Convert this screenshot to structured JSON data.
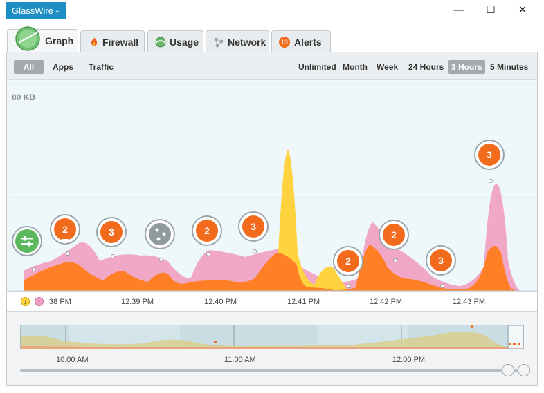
{
  "app": {
    "title": "GlassWire"
  },
  "window": {
    "minimize": "—",
    "maximize": "☐",
    "close": "✕"
  },
  "tabs": [
    {
      "label": "Graph",
      "icon": "graph-icon",
      "active": true
    },
    {
      "label": "Firewall",
      "icon": "flame-icon"
    },
    {
      "label": "Usage",
      "icon": "usage-icon"
    },
    {
      "label": "Network",
      "icon": "network-icon"
    },
    {
      "label": "Alerts",
      "icon": "alerts-icon",
      "badge": "13"
    }
  ],
  "filters": {
    "left": [
      "All",
      "Apps",
      "Traffic"
    ],
    "left_selected": "All",
    "right": [
      "Unlimited",
      "Month",
      "Week",
      "24 Hours",
      "3 Hours",
      "5 Minutes"
    ],
    "right_selected": "3 Hours"
  },
  "graph": {
    "y_max_label": "80 KB",
    "x_ticks": [
      ":38 PM",
      "12:39 PM",
      "12:40 PM",
      "12:41 PM",
      "12:42 PM",
      "12:43 PM"
    ],
    "markers": [
      {
        "kind": "settings",
        "label": ""
      },
      {
        "kind": "count",
        "label": "2"
      },
      {
        "kind": "count",
        "label": "3"
      },
      {
        "kind": "network",
        "label": ""
      },
      {
        "kind": "count",
        "label": "2"
      },
      {
        "kind": "count",
        "label": "3"
      },
      {
        "kind": "count",
        "label": "2"
      },
      {
        "kind": "count",
        "label": "2"
      },
      {
        "kind": "count",
        "label": "3"
      },
      {
        "kind": "count",
        "label": "3"
      }
    ],
    "legend": {
      "incoming": "↓",
      "outgoing": "↑"
    },
    "colors": {
      "incoming": "#ffd23f",
      "outgoing": "#f0a3c4",
      "combined": "#ff7f27",
      "marker_orange": "#f26a1b",
      "marker_green": "#5cb85c",
      "marker_gray": "#8e9a9d"
    }
  },
  "timeline": {
    "ticks": [
      "10:00 AM",
      "11:00 AM",
      "12:00 PM"
    ]
  }
}
